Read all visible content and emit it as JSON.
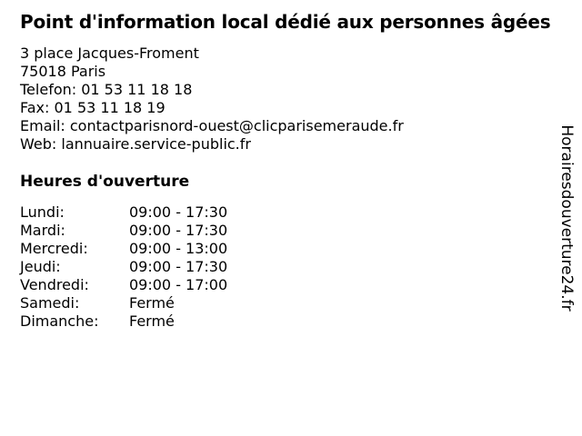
{
  "page": {
    "background_color": "#ffffff",
    "text_color": "#000000"
  },
  "listing": {
    "title": "Point d'information local dédié aux personnes âgées",
    "address_line1": "3 place Jacques-Froment",
    "address_line2": "75018 Paris",
    "phone_label": "Telefon:",
    "phone_value": "01 53 11 18 18",
    "fax_label": "Fax:",
    "fax_value": "01 53 11 18 19",
    "email_label": "Email:",
    "email_value": "contactparisnord-ouest@clicparisemeraude.fr",
    "web_label": "Web:",
    "web_value": "lannuaire.service-public.fr"
  },
  "hours": {
    "heading": "Heures d'ouverture",
    "rows": [
      {
        "day": "Lundi:",
        "value": "09:00 - 17:30"
      },
      {
        "day": "Mardi:",
        "value": "09:00 - 17:30"
      },
      {
        "day": "Mercredi:",
        "value": "09:00 - 13:00"
      },
      {
        "day": "Jeudi:",
        "value": "09:00 - 17:30"
      },
      {
        "day": "Vendredi:",
        "value": "09:00 - 17:00"
      },
      {
        "day": "Samedi:",
        "value": "Fermé"
      },
      {
        "day": "Dimanche:",
        "value": "Fermé"
      }
    ]
  },
  "branding": {
    "vertical_text": "Horairesdouverture24.fr"
  }
}
